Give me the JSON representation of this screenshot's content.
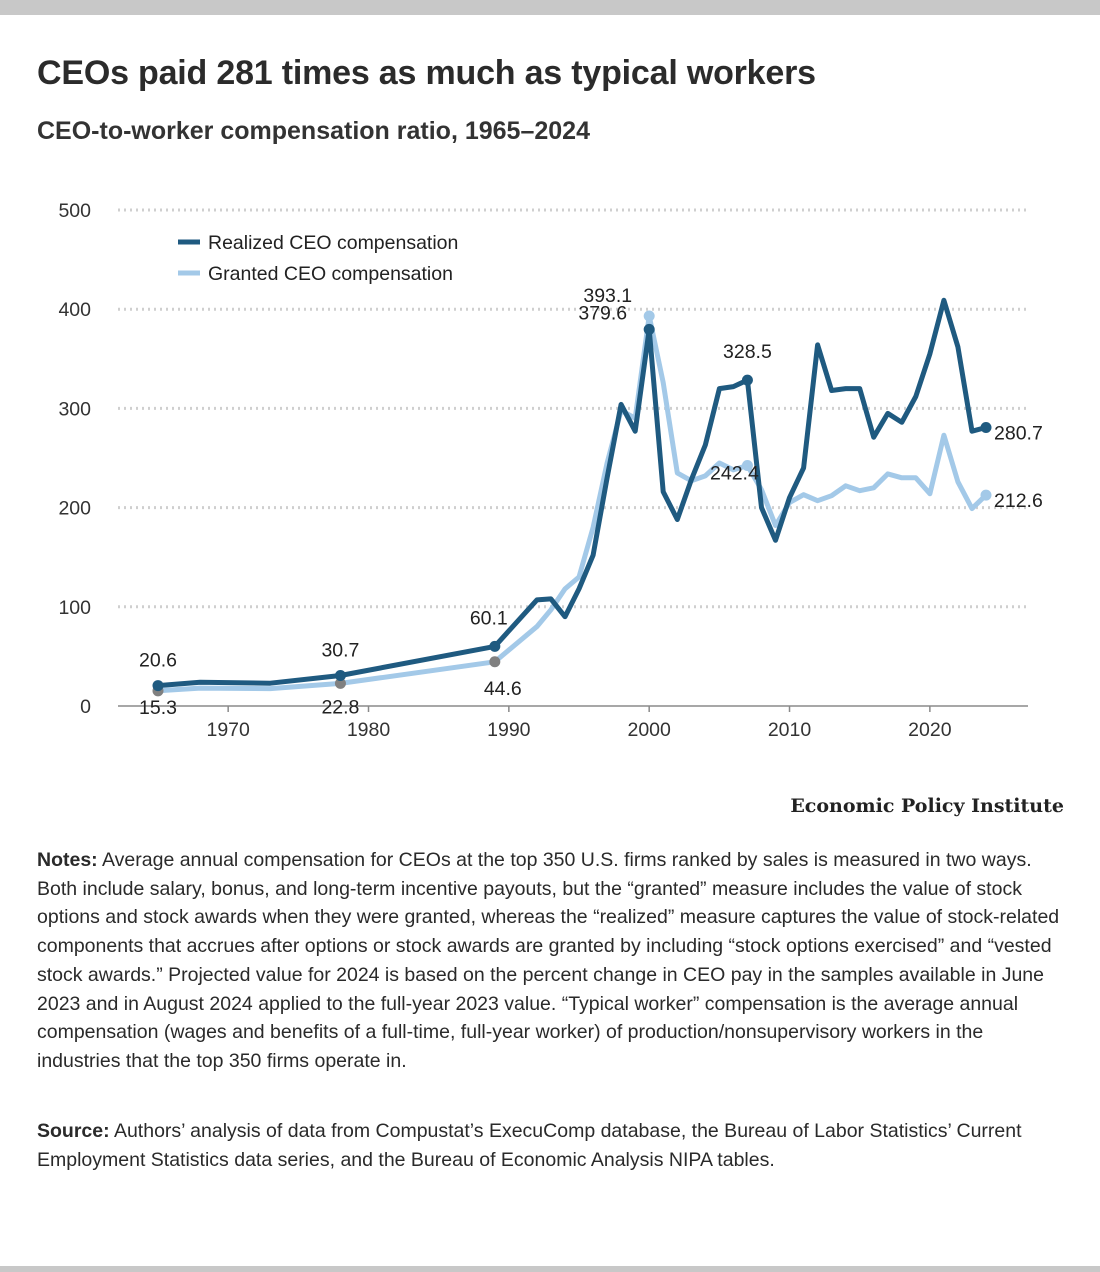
{
  "header": {
    "title": "CEOs paid 281 times as much as typical workers",
    "subtitle": "CEO-to-worker compensation ratio, 1965–2024"
  },
  "chart_data": {
    "type": "line",
    "ylim": [
      0,
      500
    ],
    "xlim": [
      1965,
      2024
    ],
    "y_ticks": [
      0,
      100,
      200,
      300,
      400,
      500
    ],
    "x_ticks": [
      1970,
      1980,
      1990,
      2000,
      2010,
      2020
    ],
    "grid": "horizontal-dotted",
    "legend_position": "top-left",
    "series": [
      {
        "name": "Realized CEO compensation",
        "color": "#1f5a80",
        "points": [
          [
            1965,
            20.6
          ],
          [
            1968,
            24
          ],
          [
            1973,
            23
          ],
          [
            1978,
            30.7
          ],
          [
            1989,
            60.1
          ],
          [
            1992,
            107
          ],
          [
            1993,
            108
          ],
          [
            1994,
            90
          ],
          [
            1995,
            118
          ],
          [
            1996,
            152
          ],
          [
            1997,
            230
          ],
          [
            1998,
            304
          ],
          [
            1999,
            277
          ],
          [
            2000,
            379.6
          ],
          [
            2001,
            216
          ],
          [
            2002,
            188
          ],
          [
            2003,
            228
          ],
          [
            2004,
            263
          ],
          [
            2005,
            320
          ],
          [
            2006,
            322
          ],
          [
            2007,
            328.5
          ],
          [
            2008,
            200
          ],
          [
            2009,
            167
          ],
          [
            2010,
            210
          ],
          [
            2011,
            240
          ],
          [
            2012,
            364
          ],
          [
            2013,
            318
          ],
          [
            2014,
            320
          ],
          [
            2015,
            320
          ],
          [
            2016,
            271
          ],
          [
            2017,
            295
          ],
          [
            2018,
            286
          ],
          [
            2019,
            312
          ],
          [
            2020,
            355
          ],
          [
            2021,
            409
          ],
          [
            2022,
            362
          ],
          [
            2023,
            277
          ],
          [
            2024,
            280.7
          ]
        ],
        "highlight_points": [
          {
            "x": 1965,
            "y": 20.6,
            "label": "20.6"
          },
          {
            "x": 1978,
            "y": 30.7,
            "label": "30.7"
          },
          {
            "x": 1989,
            "y": 60.1,
            "label": "60.1"
          },
          {
            "x": 2000,
            "y": 379.6,
            "label": "379.6"
          },
          {
            "x": 2007,
            "y": 328.5,
            "label": "328.5"
          },
          {
            "x": 2024,
            "y": 280.7,
            "label": "280.7"
          }
        ]
      },
      {
        "name": "Granted CEO compensation",
        "color": "#a3c9e8",
        "points": [
          [
            1965,
            15.3
          ],
          [
            1968,
            18
          ],
          [
            1973,
            17.5
          ],
          [
            1978,
            22.8
          ],
          [
            1989,
            44.6
          ],
          [
            1992,
            80
          ],
          [
            1993,
            97
          ],
          [
            1994,
            118
          ],
          [
            1995,
            130
          ],
          [
            1996,
            180
          ],
          [
            1997,
            245
          ],
          [
            1998,
            298
          ],
          [
            1999,
            290
          ],
          [
            2000,
            393.1
          ],
          [
            2001,
            326
          ],
          [
            2002,
            235
          ],
          [
            2003,
            227
          ],
          [
            2004,
            232
          ],
          [
            2005,
            245
          ],
          [
            2006,
            238
          ],
          [
            2007,
            242.4
          ],
          [
            2008,
            218
          ],
          [
            2009,
            182
          ],
          [
            2010,
            205
          ],
          [
            2011,
            213
          ],
          [
            2012,
            207
          ],
          [
            2013,
            212
          ],
          [
            2014,
            222
          ],
          [
            2015,
            217
          ],
          [
            2016,
            220
          ],
          [
            2017,
            234
          ],
          [
            2018,
            230
          ],
          [
            2019,
            230
          ],
          [
            2020,
            214
          ],
          [
            2021,
            273
          ],
          [
            2022,
            226
          ],
          [
            2023,
            199
          ],
          [
            2024,
            212.6
          ]
        ],
        "highlight_points": [
          {
            "x": 1965,
            "y": 15.3,
            "label": "15.3"
          },
          {
            "x": 1978,
            "y": 22.8,
            "label": "22.8"
          },
          {
            "x": 1989,
            "y": 44.6,
            "label": "44.6"
          },
          {
            "x": 2000,
            "y": 393.1,
            "label": "393.1"
          },
          {
            "x": 2007,
            "y": 242.4,
            "label": "242.4"
          },
          {
            "x": 2024,
            "y": 212.6,
            "label": "212.6"
          }
        ]
      }
    ],
    "marker_color_muted": "#808080"
  },
  "brand": "Economic Policy Institute",
  "notes": {
    "label": "Notes:",
    "text": "Average annual compensation for CEOs at the top 350 U.S. firms ranked by sales is measured in two ways. Both include salary, bonus, and long-term incentive payouts, but the “granted” measure includes the value of stock options and stock awards when they were granted, whereas the “realized” measure captures the value of stock-related components that accrues after options or stock awards are granted by including “stock options exercised” and “vested stock awards.” Projected value for 2024 is based on the percent change in CEO pay in the samples available in June 2023 and in August 2024 applied to the full-year 2023 value. “Typical worker” compensation is the average annual compensation (wages and benefits of a full-time, full-year worker) of production/nonsupervisory workers in the industries that the top 350 firms operate in."
  },
  "source": {
    "label": "Source:",
    "text": "Authors’ analysis of data from Compustat’s ExecuComp database, the Bureau of Labor Statistics’ Current Employment Statistics data series, and the Bureau of Economic Analysis NIPA tables."
  }
}
